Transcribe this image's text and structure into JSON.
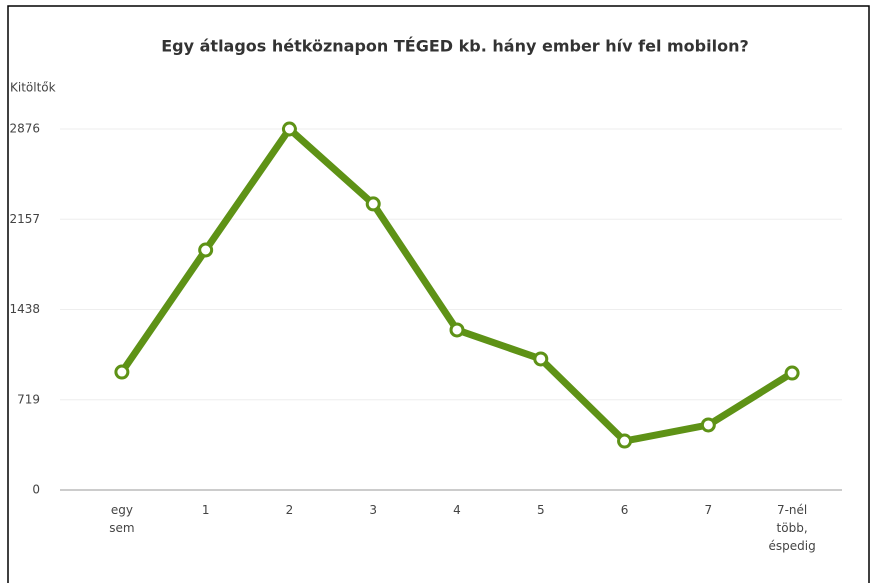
{
  "chart_data": {
    "type": "line",
    "title": "Egy átlagos hétköznapon TÉGED kb. hány ember hív fel mobilon?",
    "y_label": "Kitöltők",
    "categories": [
      "egy sem",
      "1",
      "2",
      "3",
      "4",
      "5",
      "6",
      "7",
      "7-nél több, éspedig"
    ],
    "series": [
      {
        "name": "Kitöltők",
        "color": "#5e9216",
        "values": [
          940,
          1912,
          2876,
          2279,
          1275,
          1044,
          390,
          518,
          932
        ]
      }
    ],
    "ylim": [
      0,
      2876
    ],
    "yticks": [
      0,
      719,
      1438,
      2157,
      2876
    ],
    "grid": true
  }
}
